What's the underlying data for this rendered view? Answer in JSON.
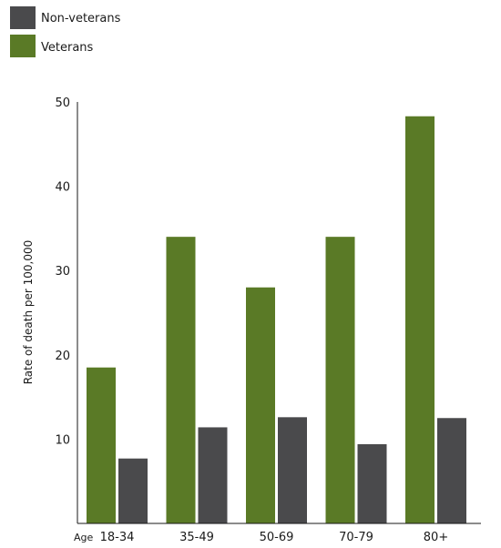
{
  "chart_data": {
    "type": "bar",
    "categories": [
      "18-34",
      "35-49",
      "50-69",
      "70-79",
      "80+"
    ],
    "series": [
      {
        "name": "Veterans",
        "values": [
          18.5,
          34.0,
          28.0,
          34.0,
          48.3
        ],
        "color": "#5a7a26"
      },
      {
        "name": "Non-veterans",
        "values": [
          7.7,
          11.4,
          12.6,
          9.4,
          12.5
        ],
        "color": "#4a4a4c"
      }
    ],
    "legend": [
      {
        "label": "Non-veterans",
        "color": "#4a4a4c"
      },
      {
        "label": "Veterans",
        "color": "#5a7a26"
      }
    ],
    "legend_placement": "top-left",
    "xlabel": "Age",
    "ylabel": "Rate of death per 100,000",
    "ylim": [
      0,
      50
    ],
    "yticks": [
      10,
      20,
      30,
      40,
      50
    ],
    "grid": false
  }
}
